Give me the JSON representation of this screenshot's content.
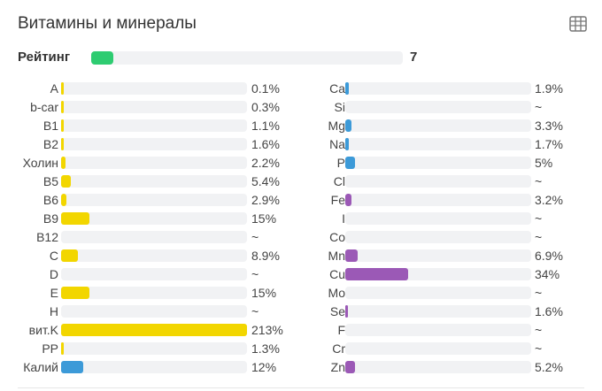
{
  "header": {
    "title": "Витамины и минералы",
    "table_icon": "table-icon"
  },
  "rating": {
    "label": "Рейтинг",
    "value": "7",
    "fill_fraction": 0.07,
    "color": "#2ecc71"
  },
  "colors": {
    "vitamin": "#f2d600",
    "mineral_blue": "#3c9ad8",
    "mineral_purple": "#9b59b6",
    "track": "#f1f2f4"
  },
  "vitamins": [
    {
      "name": "A",
      "value": "0.1%",
      "fill": 0.001,
      "color": "#f2d600"
    },
    {
      "name": "b-car",
      "value": "0.3%",
      "fill": 0.003,
      "color": "#f2d600"
    },
    {
      "name": "B1",
      "value": "1.1%",
      "fill": 0.011,
      "color": "#f2d600"
    },
    {
      "name": "B2",
      "value": "1.6%",
      "fill": 0.016,
      "color": "#f2d600"
    },
    {
      "name": "Холин",
      "value": "2.2%",
      "fill": 0.022,
      "color": "#f2d600"
    },
    {
      "name": "B5",
      "value": "5.4%",
      "fill": 0.054,
      "color": "#f2d600"
    },
    {
      "name": "B6",
      "value": "2.9%",
      "fill": 0.029,
      "color": "#f2d600"
    },
    {
      "name": "B9",
      "value": "15%",
      "fill": 0.15,
      "color": "#f2d600"
    },
    {
      "name": "B12",
      "value": "~",
      "fill": 0,
      "color": "#f2d600"
    },
    {
      "name": "C",
      "value": "8.9%",
      "fill": 0.089,
      "color": "#f2d600"
    },
    {
      "name": "D",
      "value": "~",
      "fill": 0,
      "color": "#f2d600"
    },
    {
      "name": "E",
      "value": "15%",
      "fill": 0.15,
      "color": "#f2d600"
    },
    {
      "name": "H",
      "value": "~",
      "fill": 0,
      "color": "#f2d600"
    },
    {
      "name": "вит.K",
      "value": "213%",
      "fill": 1.0,
      "color": "#f2d600"
    },
    {
      "name": "PP",
      "value": "1.3%",
      "fill": 0.013,
      "color": "#f2d600"
    },
    {
      "name": "Калий",
      "value": "12%",
      "fill": 0.12,
      "color": "#3c9ad8"
    }
  ],
  "minerals": [
    {
      "name": "Ca",
      "value": "1.9%",
      "fill": 0.019,
      "color": "#3c9ad8"
    },
    {
      "name": "Si",
      "value": "~",
      "fill": 0,
      "color": "#3c9ad8"
    },
    {
      "name": "Mg",
      "value": "3.3%",
      "fill": 0.033,
      "color": "#3c9ad8"
    },
    {
      "name": "Na",
      "value": "1.7%",
      "fill": 0.017,
      "color": "#3c9ad8"
    },
    {
      "name": "P",
      "value": "5%",
      "fill": 0.05,
      "color": "#3c9ad8"
    },
    {
      "name": "Cl",
      "value": "~",
      "fill": 0,
      "color": "#3c9ad8"
    },
    {
      "name": "Fe",
      "value": "3.2%",
      "fill": 0.032,
      "color": "#9b59b6"
    },
    {
      "name": "I",
      "value": "~",
      "fill": 0,
      "color": "#9b59b6"
    },
    {
      "name": "Co",
      "value": "~",
      "fill": 0,
      "color": "#9b59b6"
    },
    {
      "name": "Mn",
      "value": "6.9%",
      "fill": 0.069,
      "color": "#9b59b6"
    },
    {
      "name": "Cu",
      "value": "34%",
      "fill": 0.34,
      "color": "#9b59b6"
    },
    {
      "name": "Mo",
      "value": "~",
      "fill": 0,
      "color": "#9b59b6"
    },
    {
      "name": "Se",
      "value": "1.6%",
      "fill": 0.016,
      "color": "#9b59b6"
    },
    {
      "name": "F",
      "value": "~",
      "fill": 0,
      "color": "#9b59b6"
    },
    {
      "name": "Cr",
      "value": "~",
      "fill": 0,
      "color": "#9b59b6"
    },
    {
      "name": "Zn",
      "value": "5.2%",
      "fill": 0.052,
      "color": "#9b59b6"
    }
  ]
}
